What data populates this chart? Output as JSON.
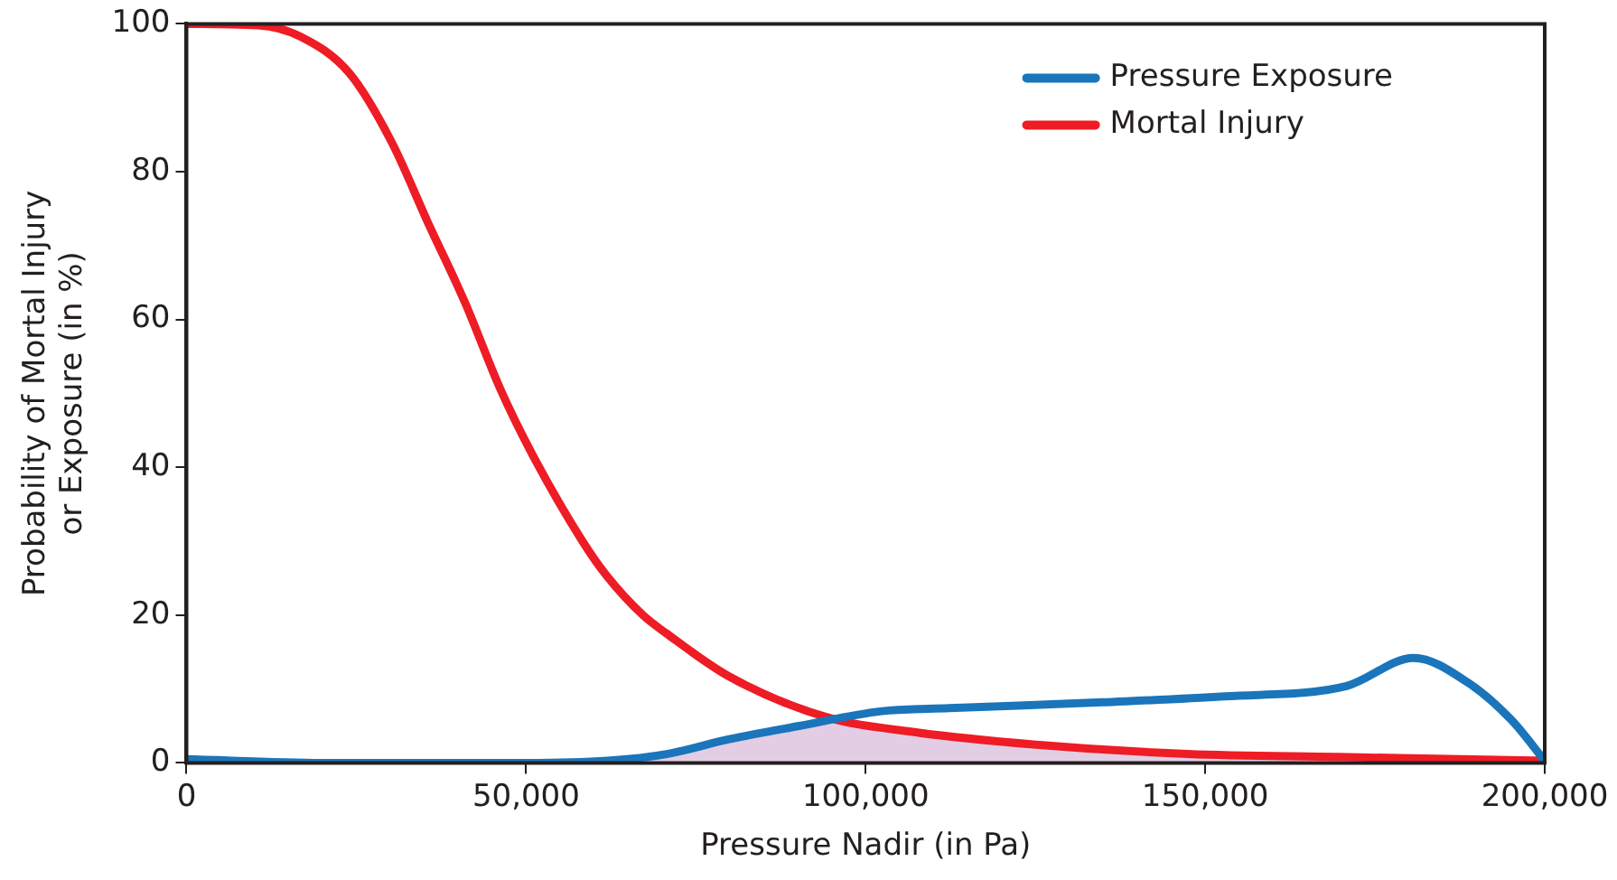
{
  "chart_data": {
    "type": "line",
    "xlabel": "Pressure Nadir (in Pa)",
    "ylabel": "Probability of Mortal Injury\nor Exposure (in %)",
    "xlim": [
      0,
      200000
    ],
    "xticks": [
      0,
      {
        "value": 50000,
        "label": "50,000"
      },
      {
        "value": 100000,
        "label": "100,000"
      },
      {
        "value": 150000,
        "label": "150,000"
      },
      {
        "value": 200000,
        "label": "200,000"
      }
    ],
    "ylim": [
      0,
      100
    ],
    "yticks": [
      0,
      20,
      40,
      60,
      80,
      100
    ],
    "grid": false,
    "legend": "top right",
    "marker": "none",
    "line_style": "solid",
    "series": [
      {
        "type": "area",
        "color": "#e2cde4",
        "x": [
          62000,
          70700,
          79900,
          90200,
          94200,
          102400,
          112300,
          124700,
          147400,
          169800,
          200000
        ],
        "values": [
          0.3,
          1.2,
          3.2,
          5,
          6,
          4.8,
          3.6,
          2.5,
          1.2,
          0.8,
          0.3
        ]
      },
      {
        "name": "Pressure Exposure",
        "color": "#1a75bb",
        "x": [
          0,
          20000,
          50000,
          62000,
          70700,
          79900,
          90200,
          102400,
          112300,
          134800,
          152800,
          170800,
          180700,
          188800,
          195100,
          200000
        ],
        "values": [
          0.5,
          0,
          0,
          0.3,
          1.2,
          3.2,
          5,
          7,
          7.4,
          8.2,
          9,
          10.4,
          14.2,
          10.8,
          5.8,
          0.3
        ]
      },
      {
        "name": "Mortal Injury",
        "color": "#ee1c25",
        "x": [
          0,
          10500,
          16700,
          24000,
          30200,
          35600,
          41000,
          46200,
          51000,
          58300,
          61800,
          67200,
          70700,
          79900,
          94200,
          106900,
          124700,
          147400,
          169800,
          200000
        ],
        "values": [
          100,
          99.8,
          98.3,
          93.3,
          84,
          73,
          62.3,
          50.6,
          41.6,
          30,
          25.4,
          20,
          17.5,
          11.7,
          6.2,
          4.2,
          2.5,
          1.2,
          0.8,
          0.3
        ]
      }
    ]
  }
}
